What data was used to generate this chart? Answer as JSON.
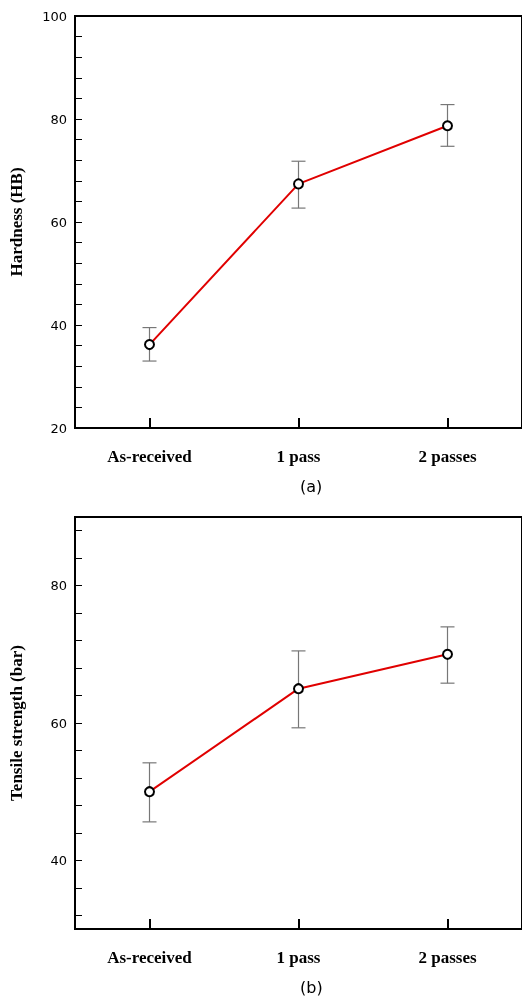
{
  "chart_data": [
    {
      "type": "line",
      "ylabel": "Hardness (HB)",
      "categories": [
        "As-received",
        "1 pass",
        "2 passes"
      ],
      "color": "#e00000",
      "marker": "circle",
      "line_style": "solid",
      "values": [
        36.2,
        67.4,
        78.7
      ],
      "errors": [
        [
          33.0,
          39.5
        ],
        [
          62.7,
          71.8
        ],
        [
          74.7,
          82.8
        ]
      ],
      "ylim": [
        20,
        100
      ],
      "yticks": [
        20,
        {
          "value": 24,
          "label": null
        },
        {
          "value": 28,
          "label": null
        },
        {
          "value": 32,
          "label": null
        },
        {
          "value": 36,
          "label": null
        },
        40,
        {
          "value": 44,
          "label": null
        },
        {
          "value": 48,
          "label": null
        },
        {
          "value": 52,
          "label": null
        },
        {
          "value": 56,
          "label": null
        },
        60,
        {
          "value": 64,
          "label": null
        },
        {
          "value": 68,
          "label": null
        },
        {
          "value": 72,
          "label": null
        },
        {
          "value": 76,
          "label": null
        },
        80,
        {
          "value": 84,
          "label": null
        },
        {
          "value": 88,
          "label": null
        },
        {
          "value": 92,
          "label": null
        },
        {
          "value": 96,
          "label": null
        },
        100
      ],
      "grid": false,
      "annotations": [
        "(a)"
      ]
    },
    {
      "type": "line",
      "ylabel": "Tensile strength (bar)",
      "categories": [
        "As-received",
        "1 pass",
        "2 passes"
      ],
      "color": "#e00000",
      "marker": "circle",
      "line_style": "solid",
      "values": [
        50.0,
        65.0,
        70.0
      ],
      "errors": [
        [
          45.6,
          54.2
        ],
        [
          59.3,
          70.5
        ],
        [
          65.8,
          74.0
        ]
      ],
      "ylim": [
        30,
        90
      ],
      "yticks": [
        {
          "value": 32,
          "label": null
        },
        {
          "value": 36,
          "label": null
        },
        40,
        {
          "value": 44,
          "label": null
        },
        {
          "value": 48,
          "label": null
        },
        {
          "value": 52,
          "label": null
        },
        {
          "value": 56,
          "label": null
        },
        60,
        {
          "value": 64,
          "label": null
        },
        {
          "value": 68,
          "label": null
        },
        {
          "value": 72,
          "label": null
        },
        {
          "value": 76,
          "label": null
        },
        80,
        {
          "value": 84,
          "label": null
        },
        {
          "value": 88,
          "label": null
        }
      ],
      "grid": false,
      "annotations": [
        "(b)"
      ]
    }
  ]
}
